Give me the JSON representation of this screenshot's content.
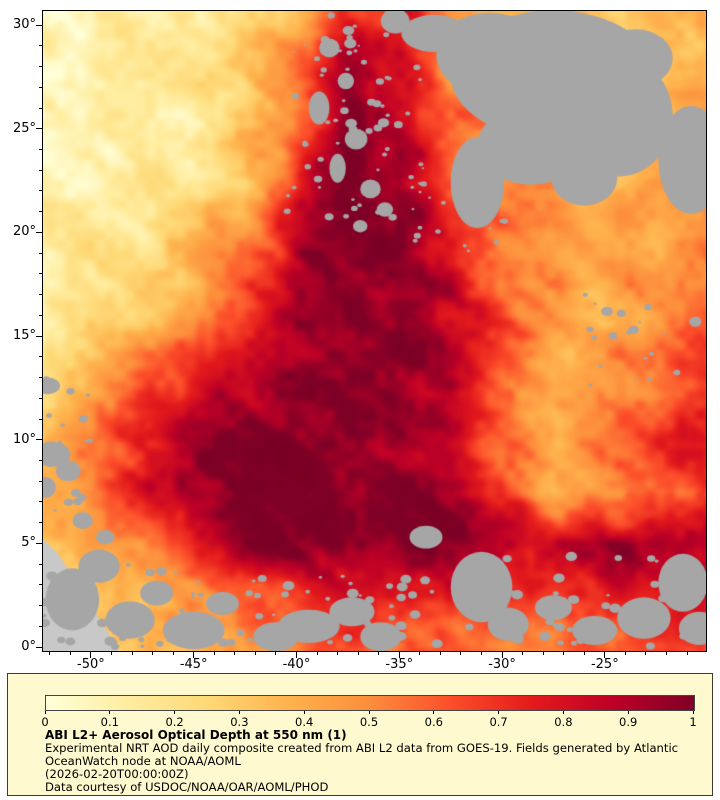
{
  "figure": {
    "background": "#FFFFFF",
    "map_border_color": "#000000",
    "axis": {
      "x": {
        "tick_values": [
          -50,
          -45,
          -40,
          -35,
          -30,
          -25
        ],
        "tick_labels": [
          "-50°",
          "-45°",
          "-40°",
          "-35°",
          "-30°",
          "-25°"
        ],
        "minor_step": 1,
        "range": [
          -52.33,
          -20.08
        ]
      },
      "y": {
        "tick_values": [
          30,
          25,
          20,
          15,
          10,
          5,
          0
        ],
        "tick_labels": [
          "30°",
          "25°",
          "20°",
          "15°",
          "10°",
          "5°",
          "0°"
        ],
        "minor_step": 1,
        "range": [
          -0.19,
          30.68
        ]
      }
    }
  },
  "legend": {
    "background": "#FFF9CF",
    "border_color": "#3C3C2E",
    "title": "ABI L2+ Aerosol Optical Depth at 550 nm (1)",
    "description": "Experimental NRT AOD daily composite created from ABI L2 data from GOES-19. Fields generated by Atlantic OceanWatch node at NOAA/AOML",
    "timestamp": "(2026-02-20T00:00:00Z)",
    "credit": "Data courtesy of USDOC/NOAA/OAR/AOML/PHOD",
    "colorbar": {
      "min": 0,
      "max": 1,
      "tick_labels": [
        "0",
        "0.1",
        "0.2",
        "0.3",
        "0.4",
        "0.5",
        "0.6",
        "0.7",
        "0.8",
        "0.9",
        "1"
      ]
    }
  },
  "chart_data": {
    "type": "heatmap",
    "title": "ABI L2+ Aerosol Optical Depth at 550 nm (1)",
    "xlabel": "",
    "ylabel": "",
    "x_range": [
      -52.33,
      -20.08
    ],
    "y_range": [
      -0.19,
      30.68
    ],
    "x_ticks": [
      -50,
      -45,
      -40,
      -35,
      -30,
      -25
    ],
    "y_ticks": [
      0,
      5,
      10,
      15,
      20,
      25,
      30
    ],
    "value_range": [
      0,
      1
    ],
    "colormap_stops": [
      [
        0,
        "#FFFFD9"
      ],
      [
        0.125,
        "#FFEDA0"
      ],
      [
        0.25,
        "#FED976"
      ],
      [
        0.375,
        "#FEB24C"
      ],
      [
        0.5,
        "#FD8D3C"
      ],
      [
        0.625,
        "#FC4E2A"
      ],
      [
        0.75,
        "#E31A1C"
      ],
      [
        0.875,
        "#BD0026"
      ],
      [
        1,
        "#800026"
      ]
    ],
    "no_data_color": "#A6A6A6",
    "land_color": "#C8C8C8",
    "grid_lon": [
      -52.5,
      -50,
      -47.5,
      -45,
      -42.5,
      -40,
      -37.5,
      -35,
      -32.5,
      -30,
      -27.5,
      -25,
      -22.5,
      -20
    ],
    "grid_lat": [
      30,
      27.5,
      25,
      22.5,
      20,
      17.5,
      15,
      12.5,
      10,
      7.5,
      5,
      2.5,
      0
    ],
    "aod_values": [
      [
        0.08,
        0.08,
        0.1,
        0.12,
        0.2,
        0.35,
        0.75,
        0.8,
        0.5,
        0.4,
        0.35,
        0.3,
        0.3,
        0.35
      ],
      [
        0.07,
        0.08,
        0.1,
        0.15,
        0.25,
        0.5,
        0.9,
        0.85,
        0.5,
        0.4,
        0.35,
        0.3,
        0.3,
        0.35
      ],
      [
        0.09,
        0.1,
        0.13,
        0.18,
        0.3,
        0.6,
        0.95,
        0.9,
        0.55,
        0.45,
        0.38,
        0.33,
        0.38,
        0.42
      ],
      [
        0.1,
        0.12,
        0.16,
        0.22,
        0.38,
        0.7,
        1.0,
        0.95,
        0.6,
        0.5,
        0.42,
        0.42,
        0.48,
        0.52
      ],
      [
        0.12,
        0.14,
        0.18,
        0.28,
        0.45,
        0.85,
        1.0,
        1.0,
        0.75,
        0.55,
        0.45,
        0.4,
        0.44,
        0.5
      ],
      [
        0.14,
        0.18,
        0.24,
        0.35,
        0.6,
        0.92,
        1.0,
        1.0,
        0.85,
        0.6,
        0.45,
        0.4,
        0.45,
        0.55
      ],
      [
        0.2,
        0.28,
        0.38,
        0.52,
        0.8,
        0.98,
        1.0,
        1.0,
        0.9,
        0.65,
        0.45,
        0.38,
        0.48,
        0.6
      ],
      [
        0.28,
        0.42,
        0.58,
        0.75,
        0.92,
        1.0,
        1.0,
        1.0,
        0.9,
        0.6,
        0.35,
        0.45,
        0.58,
        0.7
      ],
      [
        0.42,
        0.58,
        0.78,
        0.92,
        1.0,
        1.0,
        1.0,
        1.0,
        0.85,
        0.58,
        0.4,
        0.55,
        0.68,
        0.75
      ],
      [
        0.38,
        0.52,
        0.74,
        0.92,
        1.0,
        1.0,
        1.0,
        1.0,
        0.95,
        0.68,
        0.42,
        0.45,
        0.58,
        0.66
      ],
      [
        0.3,
        0.4,
        0.55,
        0.8,
        0.95,
        1.0,
        1.0,
        1.0,
        0.95,
        0.9,
        0.85,
        0.9,
        0.95,
        0.95
      ],
      [
        0.24,
        0.3,
        0.4,
        0.5,
        0.62,
        0.72,
        0.82,
        0.82,
        0.72,
        0.66,
        0.7,
        0.76,
        0.8,
        0.8
      ],
      [
        0.2,
        0.24,
        0.3,
        0.36,
        0.44,
        0.52,
        0.62,
        0.6,
        0.55,
        0.5,
        0.55,
        0.6,
        0.65,
        0.65
      ]
    ],
    "land_polygon": [
      [
        -52.33,
        5.2
      ],
      [
        -51.6,
        4.5
      ],
      [
        -51.0,
        3.6
      ],
      [
        -50.3,
        2.5
      ],
      [
        -49.6,
        1.4
      ],
      [
        -49.0,
        0.4
      ],
      [
        -48.7,
        -0.2
      ],
      [
        -52.33,
        -0.2
      ]
    ],
    "no_data_blobs": [
      [
        -27.5,
        27.6,
        5.0,
        3.1
      ],
      [
        -30.6,
        28.6,
        2.6,
        2.0
      ],
      [
        -24.3,
        25.6,
        2.6,
        2.9
      ],
      [
        -28.6,
        24.2,
        2.6,
        1.9
      ],
      [
        -31.2,
        22.4,
        1.3,
        2.2
      ],
      [
        -26.0,
        22.6,
        1.6,
        1.3
      ],
      [
        -33.3,
        29.6,
        1.6,
        0.9
      ],
      [
        -23.5,
        28.4,
        1.8,
        1.4
      ],
      [
        -20.8,
        23.5,
        1.6,
        2.6
      ],
      [
        -35.2,
        30.2,
        0.7,
        0.6
      ],
      [
        -38.4,
        28.9,
        0.5,
        0.45
      ],
      [
        -37.6,
        27.3,
        0.4,
        0.4
      ],
      [
        -38.9,
        26.0,
        0.5,
        0.8
      ],
      [
        -37.1,
        24.5,
        0.55,
        0.5
      ],
      [
        -38.0,
        23.1,
        0.4,
        0.7
      ],
      [
        -36.4,
        22.1,
        0.5,
        0.45
      ],
      [
        -35.7,
        21.1,
        0.4,
        0.35
      ],
      [
        -36.9,
        20.3,
        0.35,
        0.3
      ],
      [
        -52.1,
        12.6,
        0.6,
        0.4
      ],
      [
        -51.9,
        9.3,
        0.9,
        0.6
      ],
      [
        -51.1,
        8.5,
        0.6,
        0.5
      ],
      [
        -52.2,
        7.7,
        0.5,
        0.5
      ],
      [
        -50.4,
        6.1,
        0.5,
        0.4
      ],
      [
        -49.3,
        5.3,
        0.45,
        0.35
      ],
      [
        -24.9,
        16.2,
        0.28,
        0.22
      ],
      [
        -24.2,
        16.1,
        0.22,
        0.18
      ],
      [
        -23.6,
        15.3,
        0.26,
        0.2
      ],
      [
        -24.6,
        15.0,
        0.2,
        0.18
      ],
      [
        -22.9,
        16.4,
        0.18,
        0.15
      ],
      [
        -20.6,
        15.7,
        0.3,
        0.25
      ],
      [
        -50.9,
        2.3,
        1.3,
        1.5
      ],
      [
        -49.6,
        3.9,
        1.0,
        0.8
      ],
      [
        -48.1,
        1.3,
        1.2,
        0.9
      ],
      [
        -46.8,
        2.6,
        0.8,
        0.6
      ],
      [
        -45.0,
        0.8,
        1.5,
        0.9
      ],
      [
        -43.6,
        2.1,
        0.8,
        0.55
      ],
      [
        -41.0,
        0.5,
        1.1,
        0.7
      ],
      [
        -39.4,
        1.0,
        1.5,
        0.8
      ],
      [
        -37.3,
        1.7,
        1.1,
        0.7
      ],
      [
        -35.9,
        0.5,
        1.0,
        0.7
      ],
      [
        -33.7,
        5.3,
        0.8,
        0.55
      ],
      [
        -31.0,
        2.9,
        1.5,
        1.7
      ],
      [
        -29.7,
        1.1,
        1.0,
        0.8
      ],
      [
        -27.5,
        1.9,
        0.9,
        0.6
      ],
      [
        -25.5,
        0.8,
        1.1,
        0.7
      ],
      [
        -23.1,
        1.4,
        1.3,
        1.0
      ],
      [
        -21.2,
        3.1,
        1.2,
        1.4
      ],
      [
        -20.4,
        0.9,
        1.0,
        0.8
      ]
    ],
    "speckle_regions": [
      [
        -40.5,
        -33.5,
        20.5,
        29.5,
        55,
        0.06,
        0.22
      ],
      [
        -34.5,
        -29.5,
        19.0,
        22.5,
        18,
        0.06,
        0.18
      ],
      [
        -52.3,
        -44.0,
        0.0,
        4.0,
        40,
        0.08,
        0.3
      ],
      [
        -44.0,
        -33.0,
        0.0,
        3.5,
        45,
        0.08,
        0.3
      ],
      [
        -33.0,
        -20.2,
        0.0,
        4.5,
        45,
        0.08,
        0.3
      ],
      [
        -26.5,
        -20.2,
        12.5,
        17.5,
        14,
        0.06,
        0.18
      ],
      [
        -52.3,
        -50.0,
        6.0,
        13.0,
        18,
        0.07,
        0.25
      ],
      [
        -38.5,
        -35.5,
        25.0,
        30.5,
        12,
        0.08,
        0.3
      ]
    ]
  }
}
